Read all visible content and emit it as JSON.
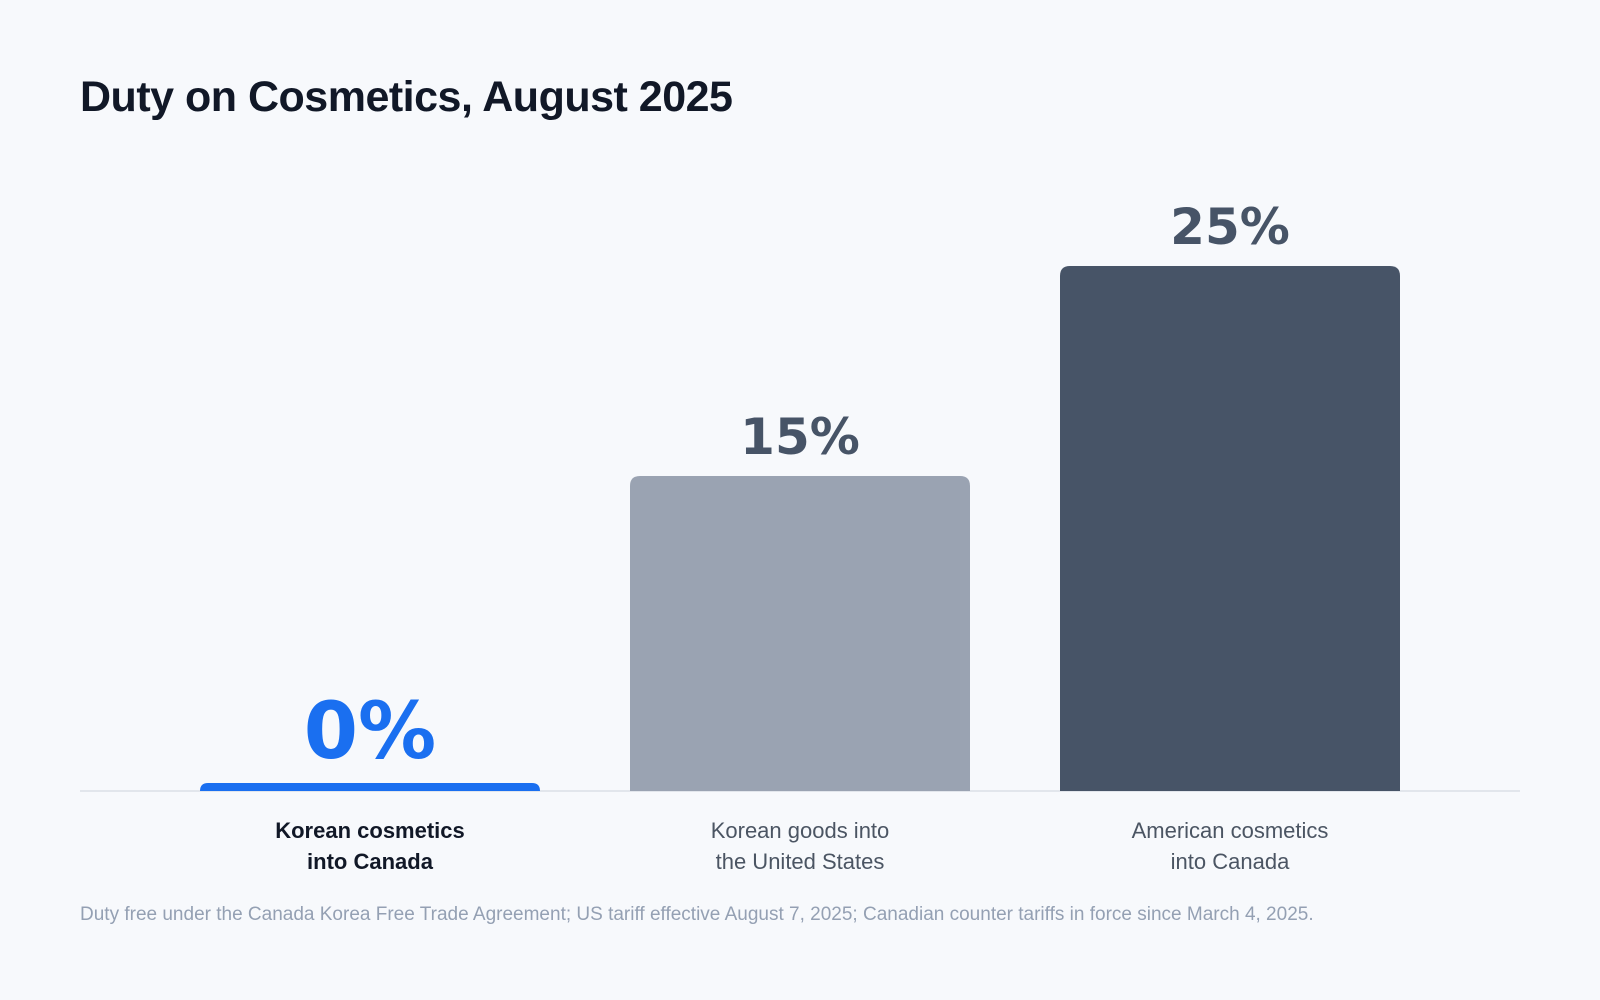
{
  "title": "Duty on Cosmetics, August 2025",
  "footnote": "Duty free under the Canada Korea Free Trade Agreement; US tariff effective August 7, 2025; Canadian counter tariffs in force since March 4, 2025.",
  "colors": {
    "highlight": "#1a6ff0",
    "light_bar": "#9aa3b2",
    "dark_bar": "#475467",
    "baseline": "#e2e6ec",
    "highlight_label": "#111827",
    "muted_label": "#4b5563"
  },
  "chart_data": {
    "type": "bar",
    "categories": [
      [
        "Korean cosmetics",
        "into Canada"
      ],
      [
        "Korean goods into",
        "the United States"
      ],
      [
        "American cosmetics",
        "into Canada"
      ]
    ],
    "values": [
      0,
      15,
      25
    ],
    "value_labels": [
      "0%",
      "15%",
      "25%"
    ],
    "unit": "%",
    "ylim": [
      0,
      25
    ],
    "highlighted_index": 0,
    "grid": false,
    "legend": "none"
  }
}
